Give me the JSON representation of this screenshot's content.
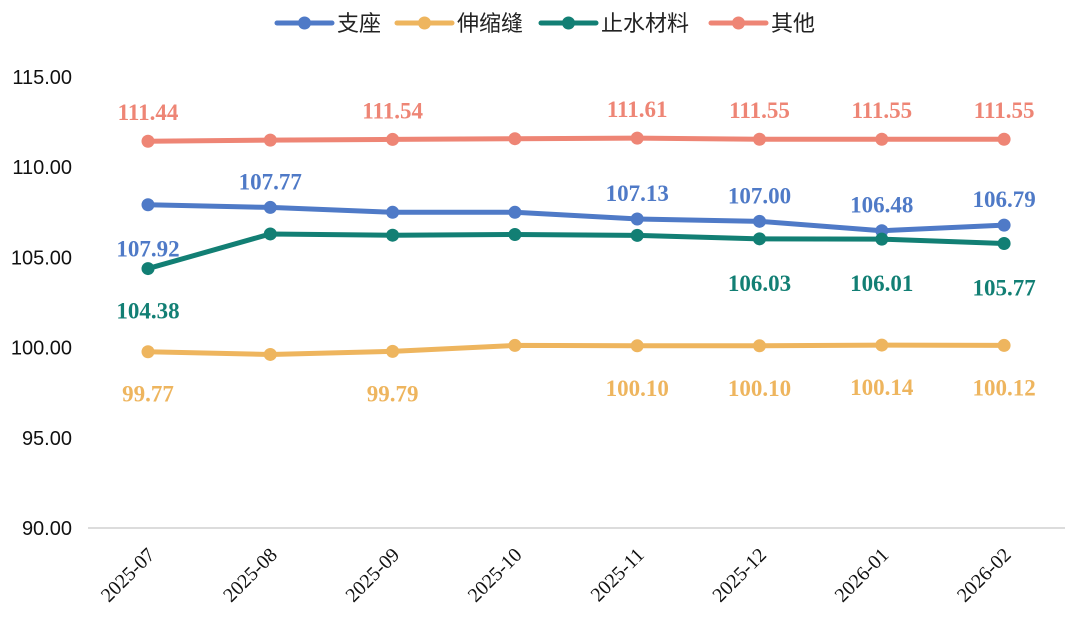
{
  "chart_data": {
    "type": "line",
    "title": "",
    "xlabel": "",
    "ylabel": "",
    "ylim": [
      90,
      115
    ],
    "yticks": [
      "90.00",
      "95.00",
      "100.00",
      "105.00",
      "110.00",
      "115.00"
    ],
    "categories": [
      "2025-07",
      "2025-08",
      "2025-09",
      "2025-10",
      "2025-11",
      "2025-12",
      "2026-01",
      "2026-02"
    ],
    "grid": false,
    "legend": "top-center",
    "series": [
      {
        "name": "支座",
        "color": "#4F7AC7",
        "values": [
          107.92,
          107.77,
          107.5,
          107.5,
          107.13,
          107.0,
          106.48,
          106.79
        ],
        "labels": [
          "107.92",
          "107.77",
          "",
          "",
          "107.13",
          "107.00",
          "106.48",
          "106.79"
        ]
      },
      {
        "name": "伸缩缝",
        "color": "#EEB55E",
        "values": [
          99.77,
          99.62,
          99.79,
          100.12,
          100.1,
          100.1,
          100.14,
          100.12
        ],
        "labels": [
          "99.77",
          "",
          "99.79",
          "",
          "100.10",
          "100.10",
          "100.14",
          "100.12"
        ]
      },
      {
        "name": "止水材料",
        "color": "#127F74",
        "values": [
          104.38,
          106.3,
          106.23,
          106.27,
          106.22,
          106.03,
          106.01,
          105.77
        ],
        "labels": [
          "104.38",
          "",
          "",
          "",
          "",
          "106.03",
          "106.01",
          "105.77"
        ]
      },
      {
        "name": "其他",
        "color": "#EE8575",
        "values": [
          111.44,
          111.5,
          111.54,
          111.58,
          111.61,
          111.55,
          111.55,
          111.55
        ],
        "labels": [
          "111.44",
          "",
          "111.54",
          "",
          "111.61",
          "111.55",
          "111.55",
          "111.55"
        ]
      }
    ]
  }
}
